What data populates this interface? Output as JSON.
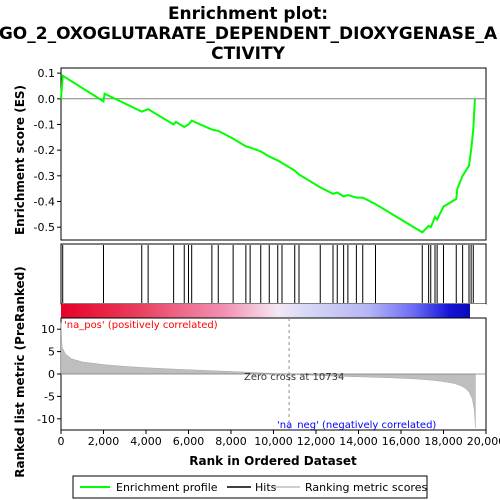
{
  "chart_data": {
    "type": "line",
    "title_lines": [
      "Enrichment plot:",
      "GO_2_OXOGLUTARATE_DEPENDENT_DIOXYGENASE_A",
      "CTIVITY"
    ],
    "ylabel_top": "Enrichment score (ES)",
    "ylabel_bottom": "Ranked list metric (PreRanked)",
    "xlabel": "Rank in Ordered Dataset",
    "xlim": [
      0,
      20000
    ],
    "x_ticks": [
      0,
      2000,
      4000,
      6000,
      8000,
      10000,
      12000,
      14000,
      16000,
      18000,
      20000
    ],
    "x_tick_labels": [
      "0",
      "2,000",
      "4,000",
      "6,000",
      "8,000",
      "10,000",
      "12,000",
      "14,000",
      "16,000",
      "18,000",
      "20,000"
    ],
    "es_ylim": [
      -0.55,
      0.12
    ],
    "es_ticks": [
      0.1,
      0.0,
      -0.1,
      -0.2,
      -0.3,
      -0.4,
      -0.5
    ],
    "es_tick_labels": [
      "0.1",
      "0.0",
      "-0.1",
      "-0.2",
      "-0.3",
      "-0.4",
      "-0.5"
    ],
    "metric_ylim": [
      -12.5,
      12.5
    ],
    "metric_ticks": [
      10,
      5,
      0,
      -5,
      -10
    ],
    "metric_tick_labels": [
      "10",
      "5",
      "0",
      "-5",
      "-10"
    ],
    "dataset_size": 19500,
    "zero_cross": 10734,
    "zero_cross_label": "Zero cross at 10734",
    "pos_label": "'na_pos' (positively correlated)",
    "neg_label": "'na_neg' (negatively correlated)",
    "hits": [
      80,
      2000,
      3800,
      4100,
      5300,
      5800,
      6000,
      6150,
      7100,
      7400,
      8100,
      8700,
      8900,
      9400,
      9800,
      10200,
      10400,
      11000,
      11200,
      12200,
      12800,
      13000,
      13300,
      13500,
      13900,
      14200,
      14800,
      17000,
      17300,
      17400,
      17600,
      17700,
      18000,
      18600,
      18900,
      19200,
      19300,
      19400
    ],
    "series": [
      {
        "values": [
          [
            0,
            0.0
          ],
          [
            80,
            0.09
          ],
          [
            2000,
            -0.01
          ],
          [
            2050,
            0.02
          ],
          [
            3800,
            -0.05
          ],
          [
            4100,
            -0.04
          ],
          [
            5300,
            -0.1
          ],
          [
            5400,
            -0.09
          ],
          [
            5800,
            -0.11
          ],
          [
            6000,
            -0.1
          ],
          [
            6150,
            -0.085
          ],
          [
            7100,
            -0.12
          ],
          [
            7400,
            -0.125
          ],
          [
            8100,
            -0.155
          ],
          [
            8700,
            -0.185
          ],
          [
            8900,
            -0.19
          ],
          [
            9400,
            -0.205
          ],
          [
            9800,
            -0.225
          ],
          [
            10200,
            -0.24
          ],
          [
            10400,
            -0.25
          ],
          [
            11000,
            -0.28
          ],
          [
            11200,
            -0.295
          ],
          [
            12200,
            -0.345
          ],
          [
            12800,
            -0.37
          ],
          [
            13000,
            -0.365
          ],
          [
            13300,
            -0.38
          ],
          [
            13500,
            -0.375
          ],
          [
            13900,
            -0.385
          ],
          [
            14200,
            -0.385
          ],
          [
            14800,
            -0.41
          ],
          [
            17000,
            -0.52
          ],
          [
            17300,
            -0.495
          ],
          [
            17400,
            -0.5
          ],
          [
            17600,
            -0.46
          ],
          [
            17700,
            -0.47
          ],
          [
            18000,
            -0.42
          ],
          [
            18600,
            -0.39
          ],
          [
            18650,
            -0.35
          ],
          [
            18900,
            -0.3
          ],
          [
            19200,
            -0.26
          ],
          [
            19300,
            -0.2
          ],
          [
            19400,
            -0.12
          ],
          [
            19480,
            0.0
          ]
        ]
      }
    ],
    "metric_profile": [
      [
        0,
        11.5
      ],
      [
        50,
        6.0
      ],
      [
        200,
        4.5
      ],
      [
        500,
        3.4
      ],
      [
        1000,
        2.7
      ],
      [
        2000,
        2.1
      ],
      [
        3000,
        1.7
      ],
      [
        4000,
        1.4
      ],
      [
        5000,
        1.15
      ],
      [
        6000,
        0.95
      ],
      [
        7000,
        0.75
      ],
      [
        8000,
        0.55
      ],
      [
        9000,
        0.35
      ],
      [
        10000,
        0.12
      ],
      [
        10734,
        0.0
      ],
      [
        11500,
        -0.2
      ],
      [
        12500,
        -0.4
      ],
      [
        13500,
        -0.55
      ],
      [
        14500,
        -0.7
      ],
      [
        15500,
        -0.85
      ],
      [
        16500,
        -1.05
      ],
      [
        17000,
        -1.2
      ],
      [
        17500,
        -1.4
      ],
      [
        18000,
        -1.7
      ],
      [
        18500,
        -2.1
      ],
      [
        18800,
        -2.6
      ],
      [
        19000,
        -3.1
      ],
      [
        19200,
        -4.0
      ],
      [
        19350,
        -5.5
      ],
      [
        19450,
        -8.0
      ],
      [
        19500,
        -12.0
      ]
    ],
    "legend": [
      "Enrichment profile",
      "Hits",
      "Ranking metric scores"
    ],
    "colors": {
      "enrichment": "#00ff00",
      "hits": "#000000",
      "metric_fill": "#bebebe",
      "pos_text": "#ff0000",
      "neg_text": "#0000ff",
      "zero_line": "#808080"
    },
    "grid": false,
    "legend_position": "bottom"
  }
}
